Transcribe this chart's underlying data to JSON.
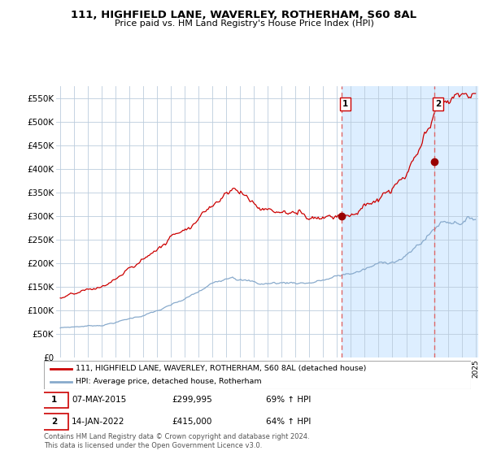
{
  "title": "111, HIGHFIELD LANE, WAVERLEY, ROTHERHAM, S60 8AL",
  "subtitle": "Price paid vs. HM Land Registry's House Price Index (HPI)",
  "legend_line1": "111, HIGHFIELD LANE, WAVERLEY, ROTHERHAM, S60 8AL (detached house)",
  "legend_line2": "HPI: Average price, detached house, Rotherham",
  "annotation1_date": "07-MAY-2015",
  "annotation1_price": "£299,995",
  "annotation1_hpi": "69% ↑ HPI",
  "annotation2_date": "14-JAN-2022",
  "annotation2_price": "£415,000",
  "annotation2_hpi": "64% ↑ HPI",
  "footer": "Contains HM Land Registry data © Crown copyright and database right 2024.\nThis data is licensed under the Open Government Licence v3.0.",
  "red_color": "#cc0000",
  "blue_color": "#88aacc",
  "bg_plot_color": "#ddeeff",
  "white_color": "#ffffff",
  "grid_color": "#bbccdd",
  "marker_color": "#990000",
  "dashed_line_color": "#dd6666",
  "ylim": [
    0,
    575000
  ],
  "yticks": [
    0,
    50000,
    100000,
    150000,
    200000,
    250000,
    300000,
    350000,
    400000,
    450000,
    500000,
    550000
  ],
  "ytick_labels": [
    "£0",
    "£50K",
    "£100K",
    "£150K",
    "£200K",
    "£250K",
    "£300K",
    "£350K",
    "£400K",
    "£450K",
    "£500K",
    "£550K"
  ],
  "xstart_year": 1995,
  "xend_year": 2025,
  "sale1_year": 2015.35,
  "sale1_price": 299995,
  "sale2_year": 2022.04,
  "sale2_price": 415000
}
